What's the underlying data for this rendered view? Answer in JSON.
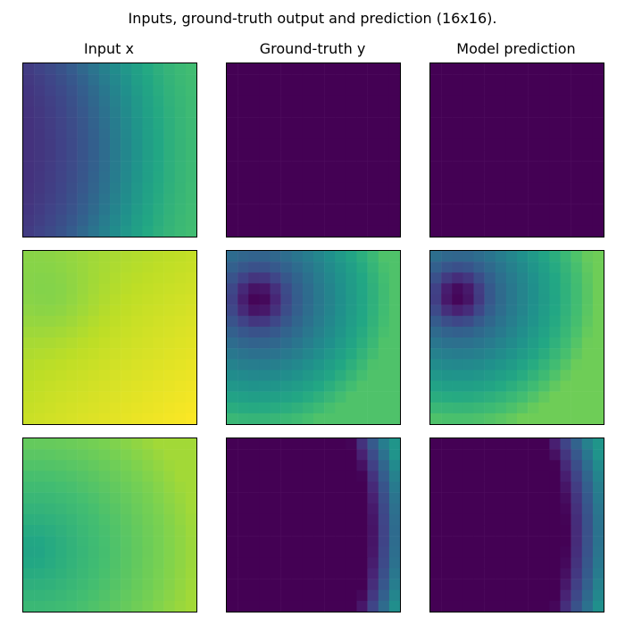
{
  "title": "Inputs, ground-truth output and prediction (16x16).",
  "columns": [
    "Input x",
    "Ground-truth y",
    "Model prediction"
  ],
  "chart_data": {
    "type": "heatmap",
    "grid": 16,
    "colormap": "viridis",
    "rows": [
      {
        "input": {
          "kind": "radial",
          "cx": -0.6,
          "cy": 0.5,
          "base": 0.16,
          "amp": 0.55,
          "radius": 0.85,
          "sharp": 6,
          "floor": 0.12
        },
        "ground_truth": {
          "kind": "const",
          "value": 0.0
        },
        "prediction": {
          "kind": "const",
          "value": 0.0
        }
      },
      {
        "input": {
          "kind": "linear",
          "a0": 0.83,
          "ax": 0.08,
          "ay": 0.09,
          "bump": {
            "cx": 0.18,
            "cy": 0.28,
            "r": 0.25,
            "v": -0.05
          }
        },
        "ground_truth": {
          "kind": "ring",
          "cx": 0.18,
          "cy": 0.28,
          "r0": 0.0,
          "scale": 1.3,
          "max": 0.72,
          "dip": 0.13
        },
        "prediction": {
          "kind": "ring",
          "cx": 0.16,
          "cy": 0.26,
          "r0": 0.0,
          "scale": 1.25,
          "max": 0.78,
          "dip": 0.16
        }
      },
      {
        "input": {
          "kind": "radial2",
          "cx": 0.05,
          "cy": 0.65,
          "inner": 0.58,
          "outer": 0.86,
          "scale": 1.1
        },
        "ground_truth": {
          "kind": "edge",
          "cx": -0.5,
          "cy": 0.55,
          "r": 1.32,
          "width": 0.22,
          "max": 0.52
        },
        "prediction": {
          "kind": "edge",
          "cx": -0.5,
          "cy": 0.55,
          "r": 1.28,
          "width": 0.26,
          "max": 0.52
        }
      }
    ]
  }
}
